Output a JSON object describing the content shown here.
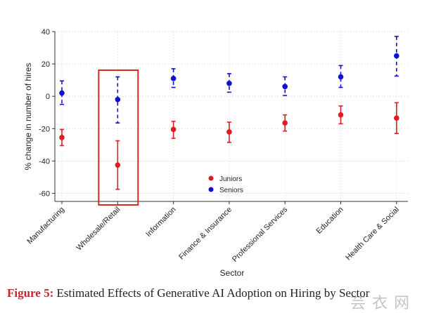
{
  "chart_data": {
    "type": "scatter",
    "subtype": "point-estimate-with-confidence-intervals",
    "xlabel": "Sector",
    "ylabel": "% change in number of hires",
    "ylim": [
      -65,
      40
    ],
    "yticks": [
      40,
      20,
      0,
      -20,
      -40,
      -60
    ],
    "grid": true,
    "categories": [
      "Manufacturing",
      "Wholesale/Retail",
      "Information",
      "Finance & Insurance",
      "Professional Services",
      "Education",
      "Health Care & Social"
    ],
    "series": [
      {
        "name": "Juniors",
        "color": "#e01b24",
        "line_style": "solid",
        "values": [
          -25.5,
          -42.5,
          -20.5,
          -22,
          -16.5,
          -11.5,
          -13.5
        ],
        "ci_lower": [
          -30.5,
          -57.5,
          -26,
          -28.5,
          -21.5,
          -17,
          -23
        ],
        "ci_upper": [
          -20.5,
          -27.5,
          -15.5,
          -16,
          -11.5,
          -6,
          -4
        ]
      },
      {
        "name": "Seniors",
        "color": "#1010d0",
        "line_style": "dashed",
        "values": [
          2,
          -2,
          11,
          8,
          6,
          12,
          25
        ],
        "ci_lower": [
          -5,
          -16.5,
          5.5,
          2.5,
          0.5,
          5.5,
          12.5
        ],
        "ci_upper": [
          9.5,
          12,
          17,
          14,
          12,
          19,
          37
        ]
      }
    ],
    "legend": {
      "position": "bottom-center",
      "entries": [
        "Juniors",
        "Seniors"
      ]
    },
    "highlight": {
      "category": "Wholesale/Retail",
      "color": "#d82a1e"
    }
  },
  "caption": {
    "label": "Figure 5:",
    "text": " Estimated Effects of Generative AI Adoption on Hiring by Sector"
  },
  "watermark": "芸 衣 网"
}
